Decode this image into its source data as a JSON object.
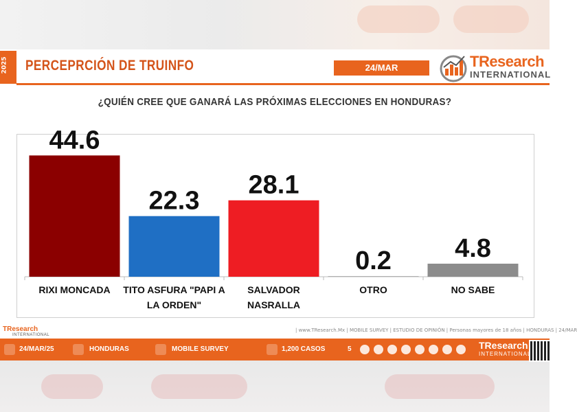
{
  "header": {
    "year": "2025",
    "title": "PERCEPRCIÓN DE TRUINFO",
    "date": "24/MAR",
    "logo_line1": "TResearch",
    "logo_line2": "INTERNATIONAL"
  },
  "question": "¿QUIÉN CREE QUE GANARÁ LAS PRÓXIMAS ELECCIONES EN HONDURAS?",
  "colors": {
    "accent": "#e8641e",
    "rixi": "#8b0000",
    "tito": "#1f6fc4",
    "nasralla": "#ee1d23",
    "otro": "#b0b0b0",
    "nosabe": "#8c8c8c"
  },
  "chart_data": {
    "type": "bar",
    "title": "¿QUIÉN CREE QUE GANARÁ LAS PRÓXIMAS ELECCIONES EN HONDURAS?",
    "categories": [
      "RIXI MONCADA",
      "TITO ASFURA \"PAPI A LA ORDEN\"",
      "SALVADOR NASRALLA",
      "OTRO",
      "NO SABE"
    ],
    "category_lines": [
      [
        "RIXI MONCADA"
      ],
      [
        "TITO ASFURA \"PAPI A",
        "LA ORDEN\""
      ],
      [
        "SALVADOR",
        "NASRALLA"
      ],
      [
        "OTRO"
      ],
      [
        "NO SABE"
      ]
    ],
    "values": [
      44.6,
      22.3,
      28.1,
      0.2,
      4.8
    ],
    "value_labels": [
      "44.6",
      "22.3",
      "28.1",
      "0.2",
      "4.8"
    ],
    "bar_colors": [
      "#8b0000",
      "#1f6fc4",
      "#ee1d23",
      "#b0b0b0",
      "#8c8c8c"
    ],
    "xlabel": "",
    "ylabel": "",
    "ylim": [
      0,
      50
    ],
    "grid": false,
    "legend": "none"
  },
  "source_note": "| www.TResearch.Mx | MOBILE SURVEY | ESTUDIO DE OPINIÓN | Personas mayores de 18 años | HONDURAS | 24/MAR",
  "small_logo": "TResearch",
  "small_logo_sub": "INTERNATIONAL",
  "footer": {
    "date": "24/MAR/25",
    "country": "HONDURAS",
    "method": "MOBILE SURVEY",
    "cases": "1,200 CASOS",
    "page": "5",
    "logo_line1": "TResearch",
    "logo_line2": "INTERNATIONAL",
    "social_icons": [
      "web-icon",
      "whatsapp-icon",
      "telegram-icon",
      "youtube-icon",
      "twitter-icon",
      "facebook-icon",
      "linkedin-icon",
      "youtube-icon"
    ],
    "qr": "qr-code-icon"
  }
}
